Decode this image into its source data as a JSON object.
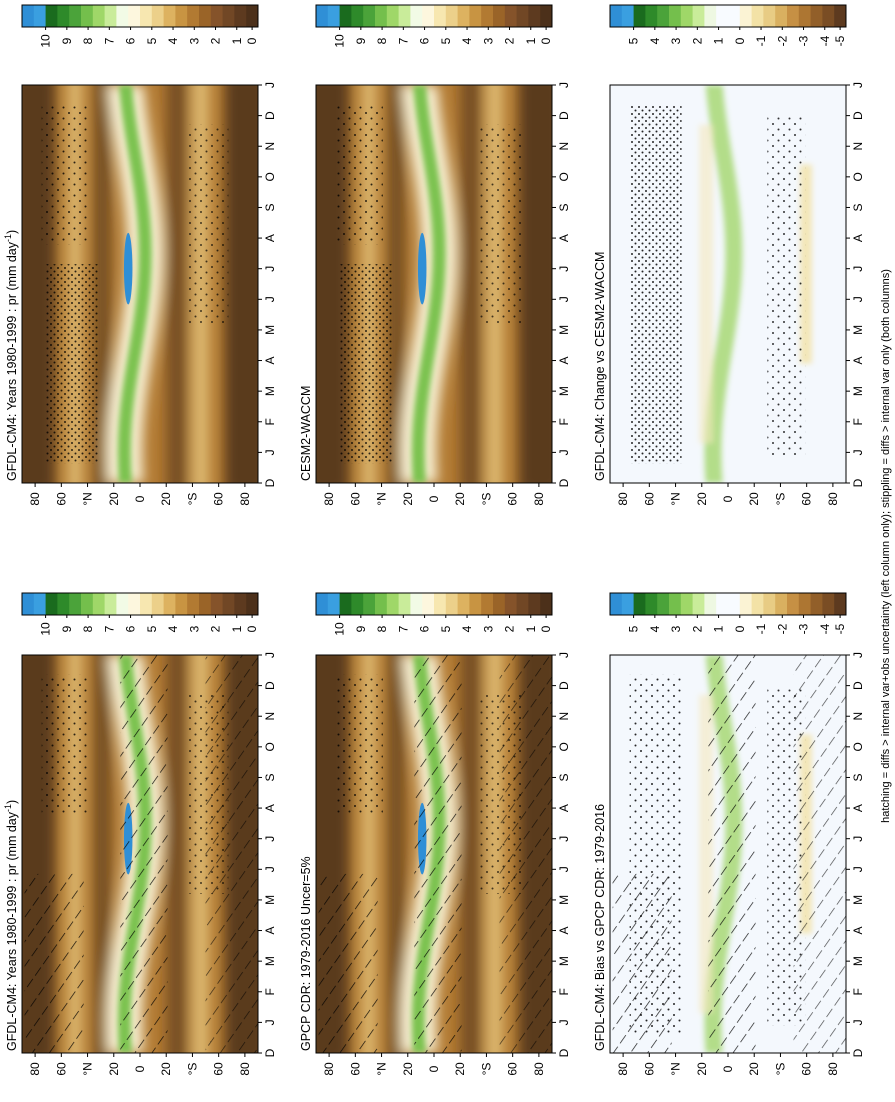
{
  "figure": {
    "footnote": "hatching = diffs > internal var+obs uncertainty (left column only); stippling = diffs > internal var only (both columns)"
  },
  "chart_data": [
    {
      "id": "model-left",
      "type": "heatmap",
      "title": "GFDL-CM4: Years 1980-1999 : pr (mm day",
      "title_sup": "-1",
      "title_end": ")",
      "x_ticks": [
        "J",
        "F",
        "M",
        "A",
        "M",
        "J",
        "J",
        "A",
        "S",
        "O",
        "N",
        "D",
        "J"
      ],
      "x_first": "D",
      "y_ticks": [
        "80",
        "60",
        "°N",
        "20",
        "0",
        "20",
        "°S",
        "60",
        "80"
      ],
      "hatching": true,
      "colorbar": "abs"
    },
    {
      "id": "model-right",
      "type": "heatmap",
      "title": "GFDL-CM4: Years 1980-1999 : pr (mm day",
      "title_sup": "-1",
      "title_end": ")",
      "x_ticks": [
        "J",
        "F",
        "M",
        "A",
        "M",
        "J",
        "J",
        "A",
        "S",
        "O",
        "N",
        "D",
        "J"
      ],
      "x_first": "D",
      "y_ticks": [
        "80",
        "60",
        "°N",
        "20",
        "0",
        "20",
        "°S",
        "60",
        "80"
      ],
      "hatching": false,
      "colorbar": "abs"
    },
    {
      "id": "obs-left",
      "type": "heatmap",
      "title": "GPCP CDR: 1979-2016 Uncer=5%",
      "x_ticks": [
        "J",
        "F",
        "M",
        "A",
        "M",
        "J",
        "J",
        "A",
        "S",
        "O",
        "N",
        "D",
        "J"
      ],
      "x_first": "D",
      "y_ticks": [
        "80",
        "60",
        "°N",
        "20",
        "0",
        "20",
        "°S",
        "60",
        "80"
      ],
      "hatching": true,
      "colorbar": "abs"
    },
    {
      "id": "obs-right",
      "type": "heatmap",
      "title": "CESM2-WACCM",
      "x_ticks": [
        "J",
        "F",
        "M",
        "A",
        "M",
        "J",
        "J",
        "A",
        "S",
        "O",
        "N",
        "D",
        "J"
      ],
      "x_first": "D",
      "y_ticks": [
        "80",
        "60",
        "°N",
        "20",
        "0",
        "20",
        "°S",
        "60",
        "80"
      ],
      "hatching": false,
      "colorbar": "abs"
    },
    {
      "id": "diff-left",
      "type": "heatmap",
      "title": "GFDL-CM4: Bias vs GPCP CDR: 1979-2016",
      "x_ticks": [
        "J",
        "F",
        "M",
        "A",
        "M",
        "J",
        "J",
        "A",
        "S",
        "O",
        "N",
        "D",
        "J"
      ],
      "x_first": "D",
      "y_ticks": [
        "80",
        "60",
        "°N",
        "20",
        "0",
        "20",
        "°S",
        "60",
        "80"
      ],
      "hatching": true,
      "colorbar": "diff"
    },
    {
      "id": "diff-right",
      "type": "heatmap",
      "title": "GFDL-CM4: Change vs CESM2-WACCM",
      "x_ticks": [
        "J",
        "F",
        "M",
        "A",
        "M",
        "J",
        "J",
        "A",
        "S",
        "O",
        "N",
        "D",
        "J"
      ],
      "x_first": "D",
      "y_ticks": [
        "80",
        "60",
        "°N",
        "20",
        "0",
        "20",
        "°S",
        "60",
        "80"
      ],
      "hatching": false,
      "colorbar": "diff"
    }
  ],
  "colorbars": {
    "abs": {
      "labels": [
        "10",
        "9",
        "8",
        "7",
        "6",
        "5",
        "4",
        "3",
        "2",
        "1",
        "0"
      ],
      "colors": [
        "#2f8fd6",
        "#3a9fe0",
        "#1a6b1e",
        "#2e8a2a",
        "#4ba33a",
        "#74bf4c",
        "#9fd768",
        "#c9ec9a",
        "#f2fbe6",
        "#fdf7de",
        "#f7e7b0",
        "#ecd08a",
        "#ddb260",
        "#c89442",
        "#b27a32",
        "#9a6428",
        "#85532a",
        "#714725",
        "#5d3a1f",
        "#4c301a"
      ]
    },
    "diff": {
      "labels": [
        "5",
        "4",
        "3",
        "2",
        "1",
        "0",
        "-1",
        "-2",
        "-3",
        "-4",
        "-5"
      ],
      "colors": [
        "#2f8fd6",
        "#3a9fe0",
        "#1a6b1e",
        "#2e8a2a",
        "#4ba33a",
        "#74bf4c",
        "#9fd768",
        "#c9ec9a",
        "#eef8e2",
        "#f8fbff",
        "#f8fbff",
        "#fbf3d4",
        "#f3e2a6",
        "#e8cc84",
        "#d9b060",
        "#c69044",
        "#ad7632",
        "#925f29",
        "#7a4d24",
        "#5d3a1f"
      ]
    }
  },
  "palette": {
    "field_dark": "#5a3a1e",
    "field_mid": "#b27a32",
    "field_light": "#e8c880",
    "itcz_green": "#7cc24f",
    "itcz_blue": "#2f8fd6",
    "diff_bg": "#f4f8fd"
  }
}
